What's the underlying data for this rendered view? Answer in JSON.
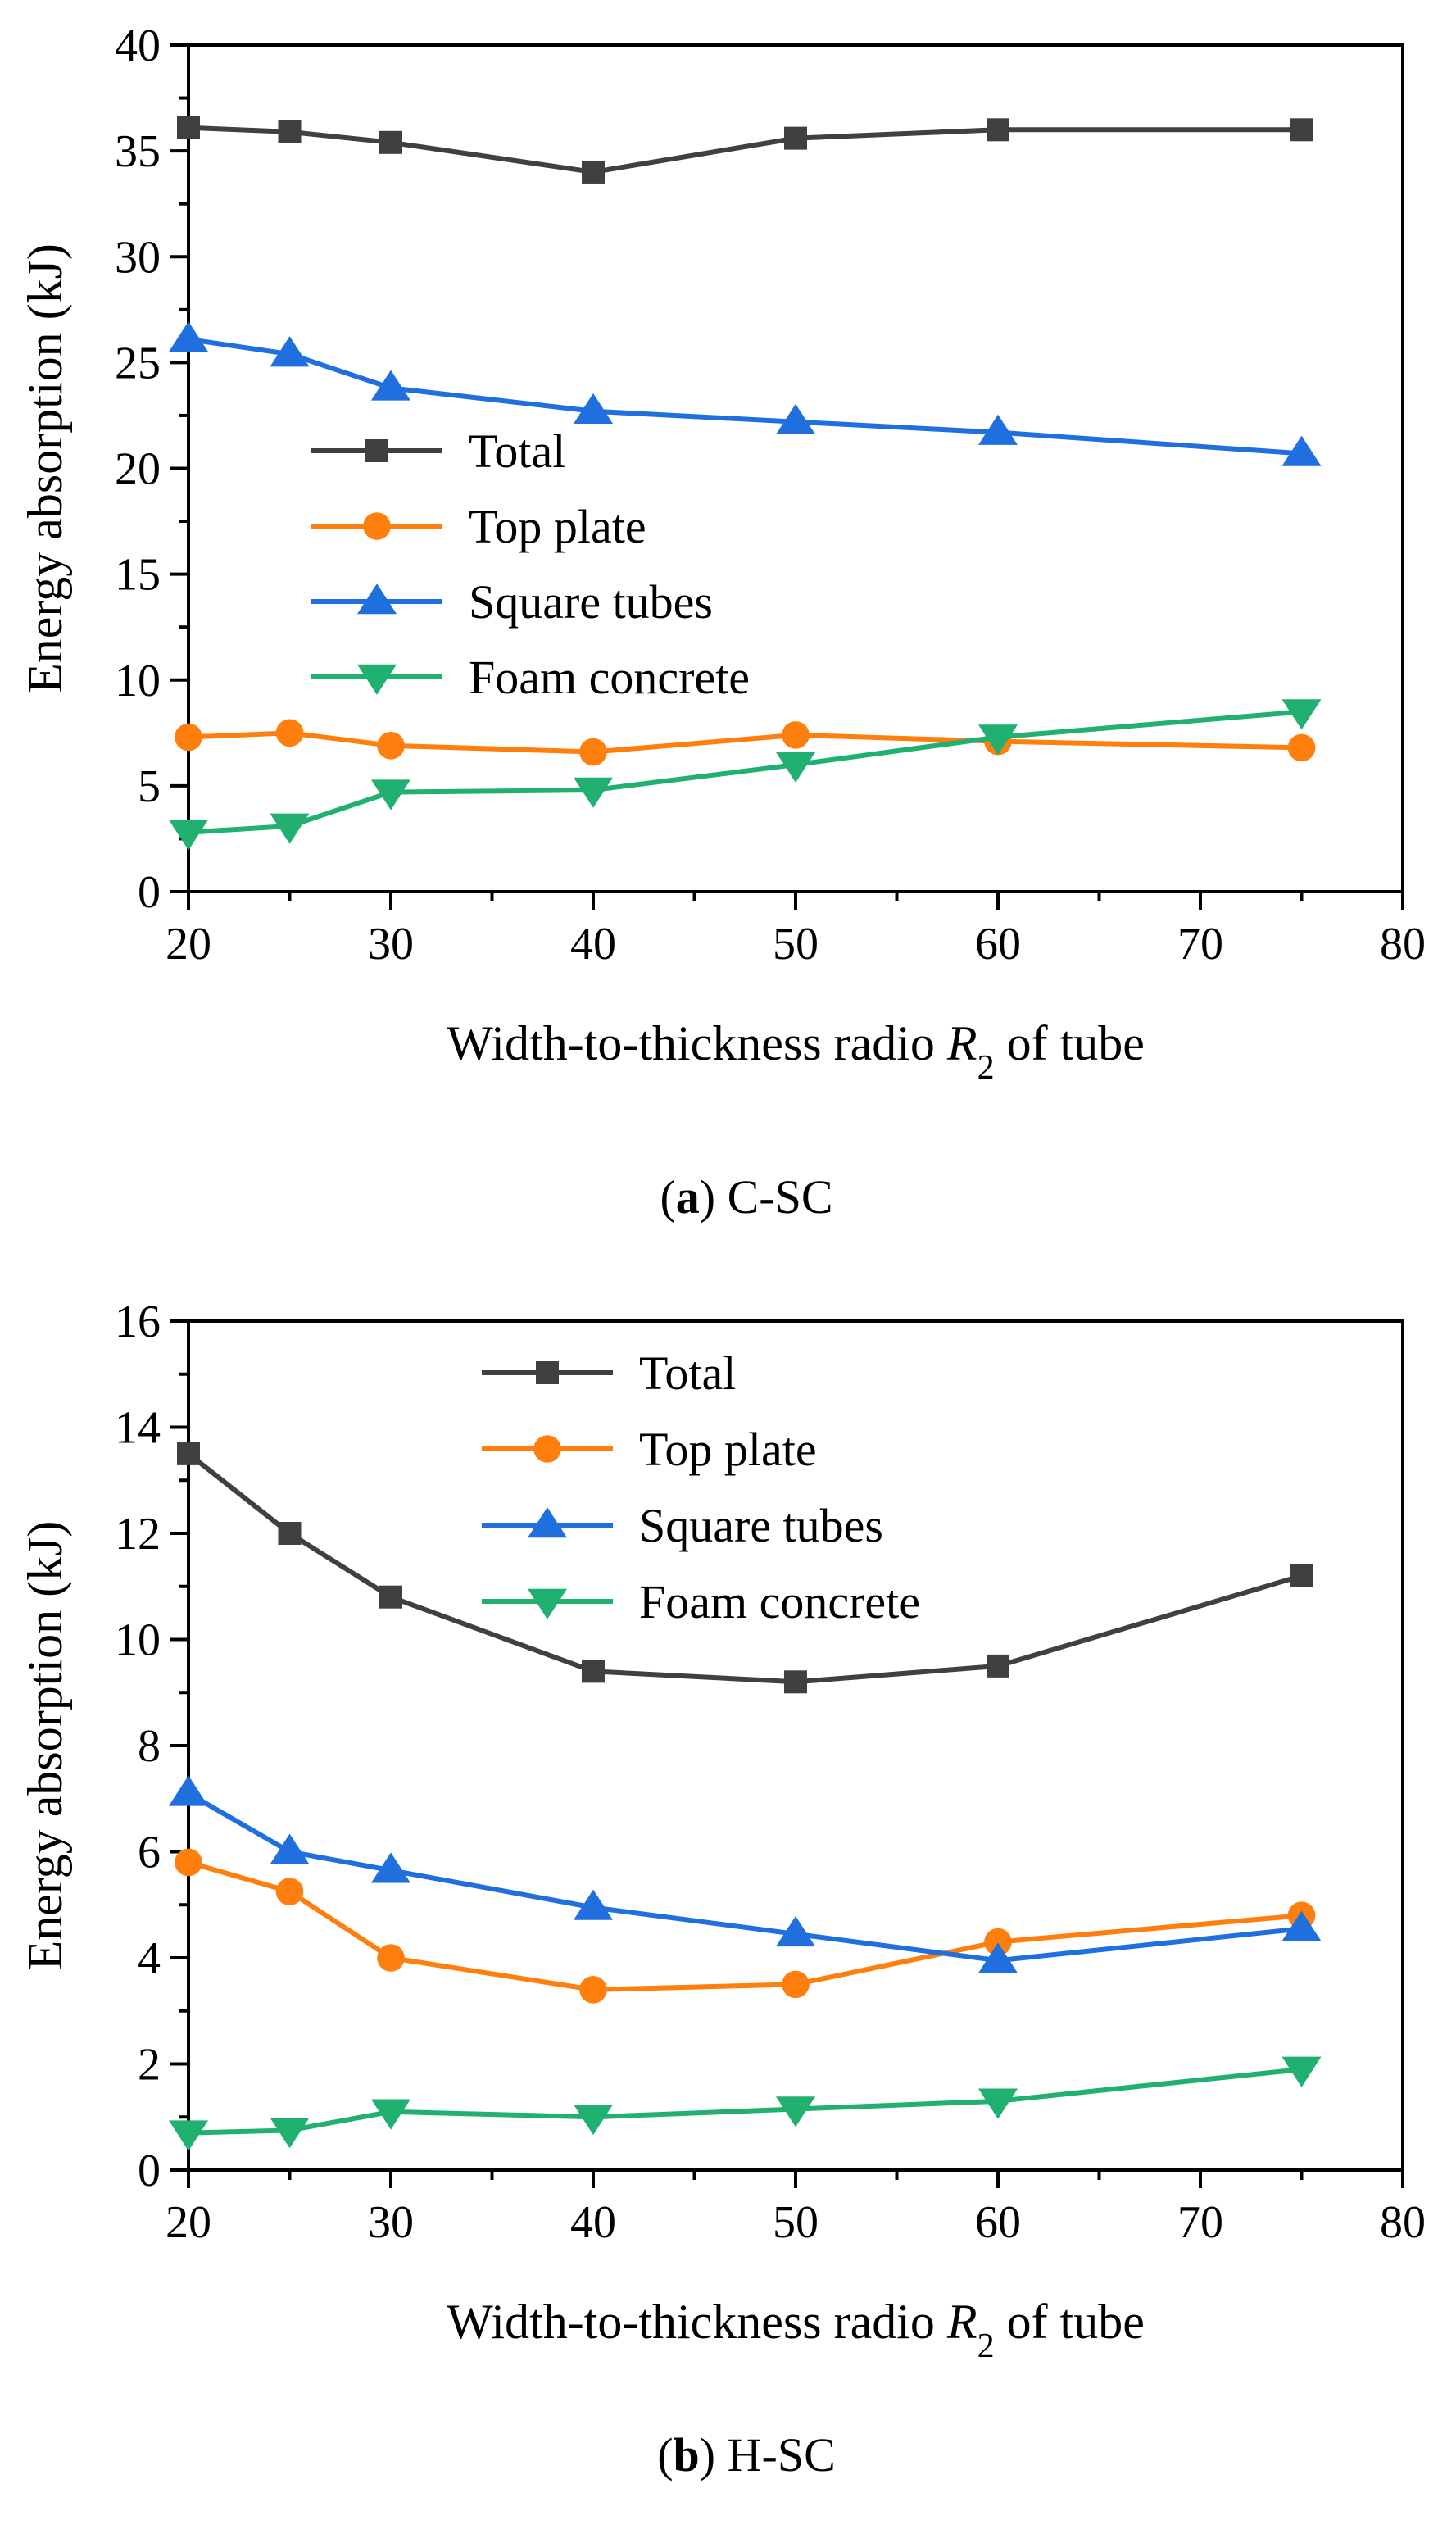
{
  "chart_data": [
    {
      "type": "line",
      "x": [
        20,
        25,
        30,
        40,
        50,
        60,
        75
      ],
      "series": [
        {
          "name": "Total",
          "values": [
            36.1,
            35.9,
            35.4,
            34.0,
            35.6,
            36.0,
            36.0
          ],
          "color": "#404040",
          "marker": "square"
        },
        {
          "name": "Top plate",
          "values": [
            7.3,
            7.5,
            6.9,
            6.6,
            7.4,
            7.1,
            6.8
          ],
          "color": "#ff7f0e",
          "marker": "circle"
        },
        {
          "name": "Square tubes",
          "values": [
            26.1,
            25.4,
            23.8,
            22.7,
            22.2,
            21.7,
            20.7
          ],
          "color": "#1f6fde",
          "marker": "triangle-up"
        },
        {
          "name": "Foam concrete",
          "values": [
            2.8,
            3.1,
            4.7,
            4.8,
            6.0,
            7.3,
            8.5
          ],
          "color": "#20b070",
          "marker": "triangle-down"
        }
      ],
      "xlabel_main": "Width-to-thickness radio ",
      "xlabel_var": "R",
      "xlabel_sub": "2",
      "xlabel_tail": " of tube",
      "ylabel": "Energy absorption (kJ)",
      "xlim": [
        20,
        80
      ],
      "ylim": [
        0,
        40
      ],
      "xticks": [
        20,
        30,
        40,
        50,
        60,
        70,
        80
      ],
      "yticks": [
        0,
        5,
        10,
        15,
        20,
        25,
        30,
        35,
        40
      ],
      "caption_letter": "a",
      "caption_text": " C-SC",
      "legend_position": "middle-left"
    },
    {
      "type": "line",
      "x": [
        20,
        25,
        30,
        40,
        50,
        60,
        75
      ],
      "series": [
        {
          "name": "Total",
          "values": [
            13.5,
            12.0,
            10.8,
            9.4,
            9.2,
            9.5,
            11.2
          ],
          "color": "#404040",
          "marker": "square"
        },
        {
          "name": "Top plate",
          "values": [
            5.8,
            5.25,
            4.0,
            3.4,
            3.5,
            4.3,
            4.8
          ],
          "color": "#ff7f0e",
          "marker": "circle"
        },
        {
          "name": "Square tubes",
          "values": [
            7.1,
            6.0,
            5.65,
            4.95,
            4.45,
            3.95,
            4.55
          ],
          "color": "#1f6fde",
          "marker": "triangle-up"
        },
        {
          "name": "Foam concrete",
          "values": [
            0.7,
            0.75,
            1.1,
            1.0,
            1.15,
            1.3,
            1.9
          ],
          "color": "#20b070",
          "marker": "triangle-down"
        }
      ],
      "xlabel_main": "Width-to-thickness radio ",
      "xlabel_var": "R",
      "xlabel_sub": "2",
      "xlabel_tail": " of tube",
      "ylabel": "Energy absorption (kJ)",
      "xlim": [
        20,
        80
      ],
      "ylim": [
        0,
        16
      ],
      "xticks": [
        20,
        30,
        40,
        50,
        60,
        70,
        80
      ],
      "yticks": [
        0,
        2,
        4,
        6,
        8,
        10,
        12,
        14,
        16
      ],
      "caption_letter": "b",
      "caption_text": " H-SC",
      "legend_position": "top-center"
    }
  ]
}
